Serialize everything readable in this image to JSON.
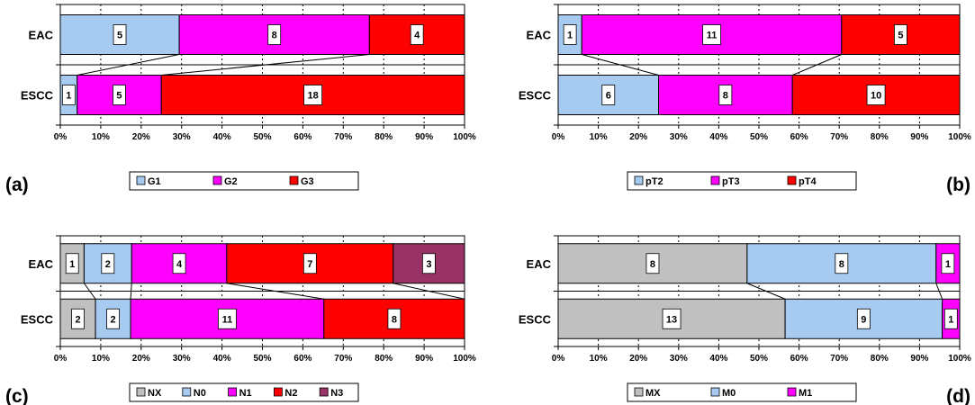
{
  "chart_data": [
    {
      "type": "bar",
      "orientation": "horizontal",
      "stacked": true,
      "normalized": true,
      "panel_label": "(a)",
      "categories": [
        "EAC",
        "ESCC"
      ],
      "series": [
        {
          "name": "G1",
          "color": "#a6caf0",
          "values": [
            5,
            1
          ]
        },
        {
          "name": "G2",
          "color": "#ff00ff",
          "values": [
            8,
            5
          ]
        },
        {
          "name": "G3",
          "color": "#ff0000",
          "values": [
            4,
            18
          ]
        }
      ],
      "xlim": [
        0,
        100
      ],
      "x_ticks": [
        "0%",
        "10%",
        "20%",
        "30%",
        "40%",
        "50%",
        "60%",
        "70%",
        "80%",
        "90%",
        "100%"
      ],
      "legend_position": "bottom",
      "grid": true
    },
    {
      "type": "bar",
      "orientation": "horizontal",
      "stacked": true,
      "normalized": true,
      "panel_label": "(b)",
      "categories": [
        "EAC",
        "ESCC"
      ],
      "series": [
        {
          "name": "pT2",
          "color": "#a6caf0",
          "values": [
            1,
            6
          ]
        },
        {
          "name": "pT3",
          "color": "#ff00ff",
          "values": [
            11,
            8
          ]
        },
        {
          "name": "pT4",
          "color": "#ff0000",
          "values": [
            5,
            10
          ]
        }
      ],
      "xlim": [
        0,
        100
      ],
      "x_ticks": [
        "0%",
        "10%",
        "20%",
        "30%",
        "40%",
        "50%",
        "60%",
        "70%",
        "80%",
        "90%",
        "100%"
      ],
      "legend_position": "bottom",
      "grid": true
    },
    {
      "type": "bar",
      "orientation": "horizontal",
      "stacked": true,
      "normalized": true,
      "panel_label": "(c)",
      "categories": [
        "EAC",
        "ESCC"
      ],
      "series": [
        {
          "name": "NX",
          "color": "#c0c0c0",
          "values": [
            1,
            2
          ]
        },
        {
          "name": "N0",
          "color": "#a6caf0",
          "values": [
            2,
            2
          ]
        },
        {
          "name": "N1",
          "color": "#ff00ff",
          "values": [
            4,
            11
          ]
        },
        {
          "name": "N2",
          "color": "#ff0000",
          "values": [
            7,
            8
          ]
        },
        {
          "name": "N3",
          "color": "#993366",
          "values": [
            3,
            0
          ]
        }
      ],
      "xlim": [
        0,
        100
      ],
      "x_ticks": [
        "0%",
        "10%",
        "20%",
        "30%",
        "40%",
        "50%",
        "60%",
        "70%",
        "80%",
        "90%",
        "100%"
      ],
      "legend_position": "bottom",
      "grid": true
    },
    {
      "type": "bar",
      "orientation": "horizontal",
      "stacked": true,
      "normalized": true,
      "panel_label": "(d)",
      "categories": [
        "EAC",
        "ESCC"
      ],
      "series": [
        {
          "name": "MX",
          "color": "#c0c0c0",
          "values": [
            8,
            13
          ]
        },
        {
          "name": "M0",
          "color": "#a6caf0",
          "values": [
            8,
            9
          ]
        },
        {
          "name": "M1",
          "color": "#ff00ff",
          "values": [
            1,
            1
          ]
        }
      ],
      "xlim": [
        0,
        100
      ],
      "x_ticks": [
        "0%",
        "10%",
        "20%",
        "30%",
        "40%",
        "50%",
        "60%",
        "70%",
        "80%",
        "90%",
        "100%"
      ],
      "legend_position": "bottom",
      "grid": true
    }
  ]
}
